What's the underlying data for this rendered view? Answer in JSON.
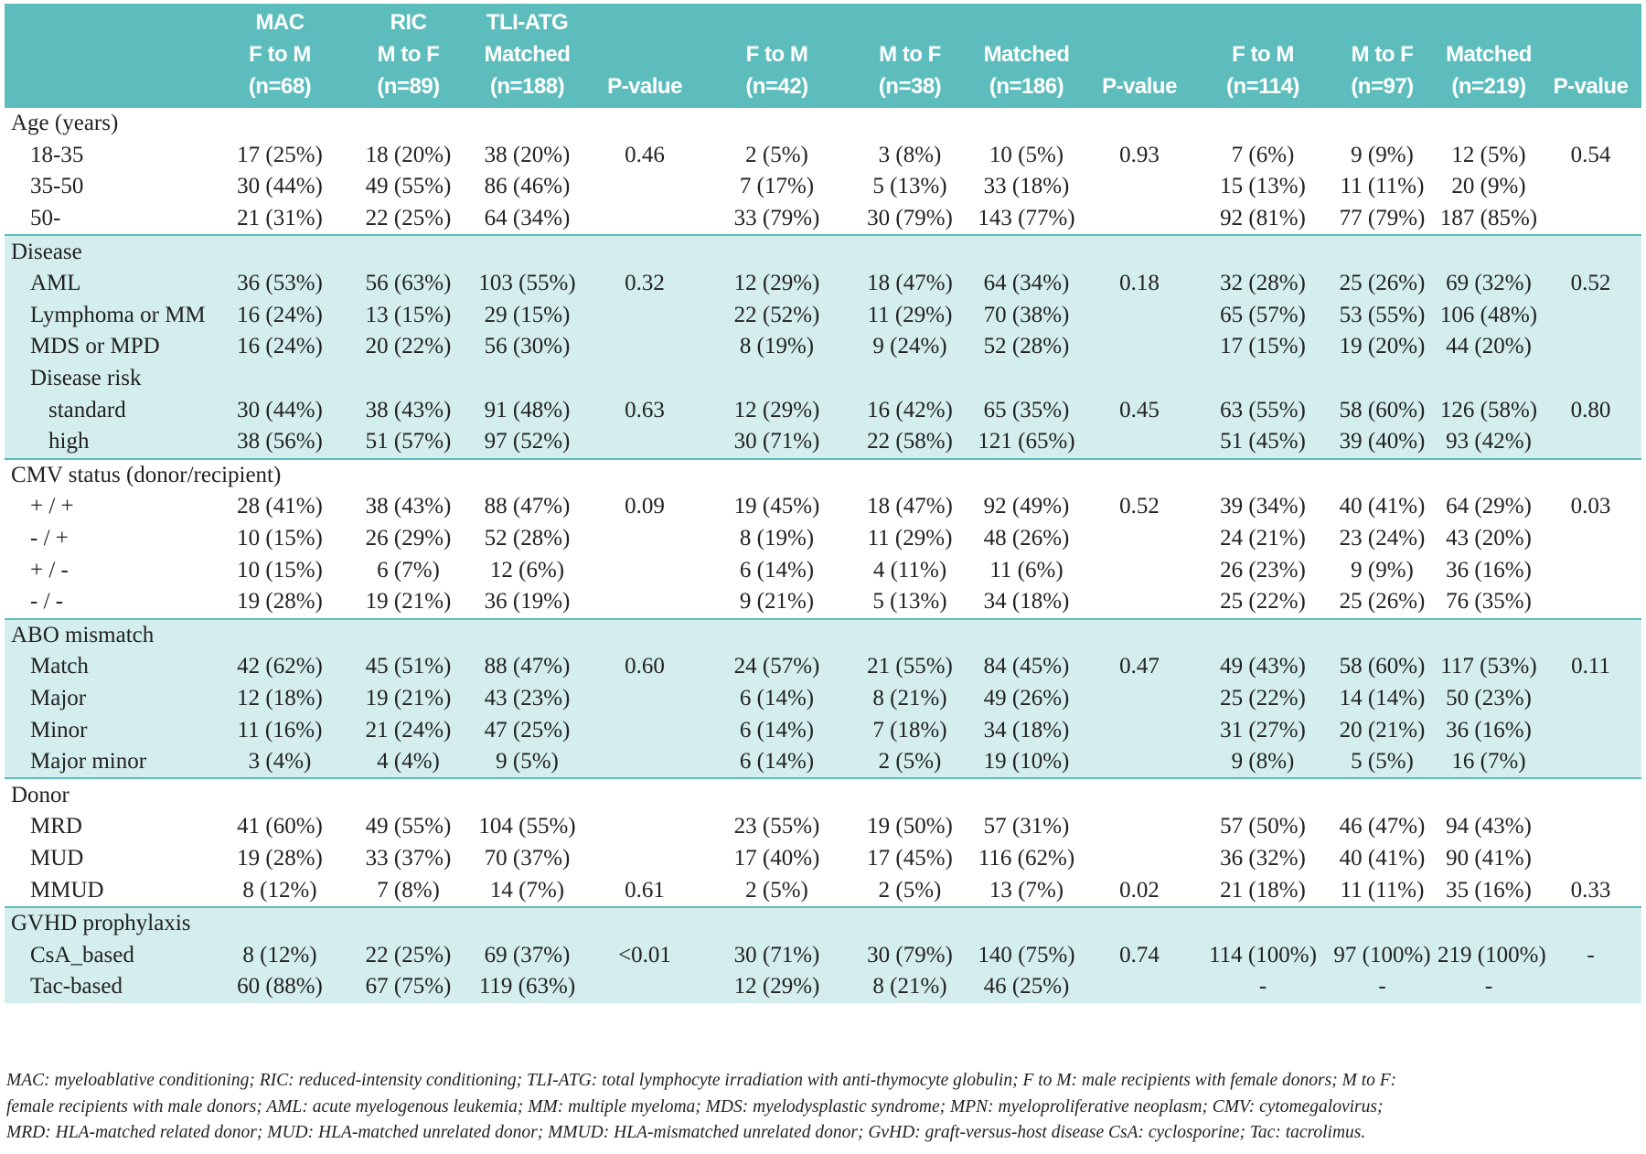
{
  "header": {
    "columns": [
      [
        "MAC",
        "F to M",
        "(n=68)"
      ],
      [
        "RIC",
        "M to F",
        "(n=89)"
      ],
      [
        "TLI-ATG",
        "Matched",
        "(n=188)"
      ],
      [
        "P-value"
      ],
      [
        "F to M",
        "(n=42)"
      ],
      [
        "M to F",
        "(n=38)"
      ],
      [
        "Matched",
        "(n=186)"
      ],
      [
        "P-value"
      ],
      [
        "F to M",
        "(n=114)"
      ],
      [
        "M to F",
        "(n=97)"
      ],
      [
        "Matched",
        "(n=219)"
      ],
      [
        "P-value"
      ]
    ]
  },
  "sections": [
    {
      "title": "Age (years)",
      "rows": [
        {
          "label": "18-35",
          "cells": [
            "17 (25%)",
            "18 (20%)",
            "38 (20%)",
            "0.46",
            "2 (5%)",
            "3 (8%)",
            "10 (5%)",
            "0.93",
            "7 (6%)",
            "9 (9%)",
            "12 (5%)",
            "0.54"
          ]
        },
        {
          "label": "35-50",
          "cells": [
            "30 (44%)",
            "49 (55%)",
            "86 (46%)",
            null,
            "7 (17%)",
            "5 (13%)",
            "33 (18%)",
            null,
            "15 (13%)",
            "11 (11%)",
            "20 (9%)",
            null
          ]
        },
        {
          "label": "50-",
          "cells": [
            "21 (31%)",
            "22 (25%)",
            "64 (34%)",
            null,
            "33 (79%)",
            "30 (79%)",
            "143 (77%)",
            null,
            "92 (81%)",
            "77 (79%)",
            "187 (85%)",
            null
          ]
        }
      ]
    },
    {
      "title": "Disease",
      "rows": [
        {
          "label": "AML",
          "cells": [
            "36 (53%)",
            "56 (63%)",
            "103 (55%)",
            "0.32",
            "12 (29%)",
            "18 (47%)",
            "64 (34%)",
            "0.18",
            "32 (28%)",
            "25 (26%)",
            "69 (32%)",
            "0.52"
          ]
        },
        {
          "label": "Lymphoma or MM",
          "cells": [
            "16 (24%)",
            "13 (15%)",
            "29 (15%)",
            null,
            "22 (52%)",
            "11 (29%)",
            "70 (38%)",
            null,
            "65 (57%)",
            "53 (55%)",
            "106 (48%)",
            null
          ]
        },
        {
          "label": "MDS or MPD",
          "cells": [
            "16 (24%)",
            "20 (22%)",
            "56 (30%)",
            null,
            "8 (19%)",
            "9 (24%)",
            "52 (28%)",
            null,
            "17 (15%)",
            "19 (20%)",
            "44 (20%)",
            null
          ]
        },
        {
          "label": "Disease risk",
          "rows": [
            {
              "label": "standard",
              "cells": [
                "30 (44%)",
                "38 (43%)",
                "91 (48%)",
                "0.63",
                "12 (29%)",
                "16 (42%)",
                "65 (35%)",
                "0.45",
                "63 (55%)",
                "58 (60%)",
                "126 (58%)",
                "0.80"
              ]
            },
            {
              "label": "high",
              "cells": [
                "38 (56%)",
                "51 (57%)",
                "97 (52%)",
                null,
                "30 (71%)",
                "22 (58%)",
                "121 (65%)",
                null,
                "51 (45%)",
                "39 (40%)",
                "93 (42%)",
                null
              ]
            }
          ]
        }
      ]
    },
    {
      "title": "CMV status (donor/recipient)",
      "rows": [
        {
          "label": "+ / +",
          "cells": [
            "28 (41%)",
            "38 (43%)",
            "88 (47%)",
            "0.09",
            "19 (45%)",
            "18 (47%)",
            "92 (49%)",
            "0.52",
            "39 (34%)",
            "40 (41%)",
            "64 (29%)",
            "0.03"
          ]
        },
        {
          "label": "- / +",
          "cells": [
            "10 (15%)",
            "26 (29%)",
            "52 (28%)",
            null,
            "8 (19%)",
            "11 (29%)",
            "48 (26%)",
            null,
            "24 (21%)",
            "23 (24%)",
            "43 (20%)",
            null
          ]
        },
        {
          "label": "+ / -",
          "cells": [
            "10 (15%)",
            "6 (7%)",
            "12 (6%)",
            null,
            "6 (14%)",
            "4 (11%)",
            "11 (6%)",
            null,
            "26 (23%)",
            "9 (9%)",
            "36 (16%)",
            null
          ]
        },
        {
          "label": "- / -",
          "cells": [
            "19 (28%)",
            "19 (21%)",
            "36 (19%)",
            null,
            "9 (21%)",
            "5 (13%)",
            "34 (18%)",
            null,
            "25 (22%)",
            "25 (26%)",
            "76 (35%)",
            null
          ]
        }
      ]
    },
    {
      "title": "ABO mismatch",
      "rows": [
        {
          "label": "Match",
          "cells": [
            "42 (62%)",
            "45 (51%)",
            "88 (47%)",
            "0.60",
            "24 (57%)",
            "21 (55%)",
            "84 (45%)",
            "0.47",
            "49 (43%)",
            "58 (60%)",
            "117 (53%)",
            "0.11"
          ]
        },
        {
          "label": "Major",
          "cells": [
            "12 (18%)",
            "19 (21%)",
            "43 (23%)",
            null,
            "6 (14%)",
            "8 (21%)",
            "49 (26%)",
            null,
            "25 (22%)",
            "14 (14%)",
            "50 (23%)",
            null
          ]
        },
        {
          "label": "Minor",
          "cells": [
            "11 (16%)",
            "21 (24%)",
            "47 (25%)",
            null,
            "6 (14%)",
            "7 (18%)",
            "34 (18%)",
            null,
            "31 (27%)",
            "20 (21%)",
            "36 (16%)",
            null
          ]
        },
        {
          "label": "Major minor",
          "cells": [
            "3 (4%)",
            "4 (4%)",
            "9 (5%)",
            null,
            "6 (14%)",
            "2 (5%)",
            "19 (10%)",
            null,
            "9 (8%)",
            "5 (5%)",
            "16 (7%)",
            null
          ]
        }
      ]
    },
    {
      "title": "Donor",
      "rows": [
        {
          "label": "MRD",
          "cells": [
            "41 (60%)",
            "49 (55%)",
            "104 (55%)",
            null,
            "23 (55%)",
            "19 (50%)",
            "57 (31%)",
            null,
            "57 (50%)",
            "46 (47%)",
            "94 (43%)",
            null
          ]
        },
        {
          "label": "MUD",
          "cells": [
            "19 (28%)",
            "33 (37%)",
            "70 (37%)",
            null,
            "17 (40%)",
            "17 (45%)",
            "116 (62%)",
            null,
            "36 (32%)",
            "40 (41%)",
            "90 (41%)",
            null
          ]
        },
        {
          "label": "MMUD",
          "cells": [
            "8 (12%)",
            "7 (8%)",
            "14 (7%)",
            "0.61",
            "2 (5%)",
            "2 (5%)",
            "13 (7%)",
            "0.02",
            "21 (18%)",
            "11 (11%)",
            "35 (16%)",
            "0.33"
          ]
        }
      ]
    },
    {
      "title": "GVHD prophylaxis",
      "rows": [
        {
          "label": "CsA_based",
          "cells": [
            "8 (12%)",
            "22 (25%)",
            "69 (37%)",
            "<0.01",
            "30 (71%)",
            "30 (79%)",
            "140 (75%)",
            "0.74",
            "114 (100%)",
            "97 (100%)",
            "219 (100%)",
            "-"
          ]
        },
        {
          "label": "Tac-based",
          "cells": [
            "60 (88%)",
            "67 (75%)",
            "119 (63%)",
            null,
            "12 (29%)",
            "8 (21%)",
            "46 (25%)",
            null,
            "-",
            "-",
            "-",
            null
          ]
        }
      ]
    }
  ],
  "footnote": [
    "MAC: myeloablative conditioning; RIC: reduced-intensity conditioning; TLI-ATG: total lymphocyte irradiation with anti-thymocyte globulin; F to M: male recipients with female donors; M to F:",
    "female recipients with male donors; AML: acute myelogenous leukemia; MM: multiple myeloma; MDS: myelodysplastic syndrome; MPN: myeloproliferative neoplasm; CMV: cytomegalovirus;",
    "MRD: HLA-matched related donor; MUD: HLA-matched unrelated donor; MMUD: HLA-mismatched unrelated donor; GvHD: graft-versus-host disease CsA: cyclosporine; Tac: tacrolimus."
  ]
}
